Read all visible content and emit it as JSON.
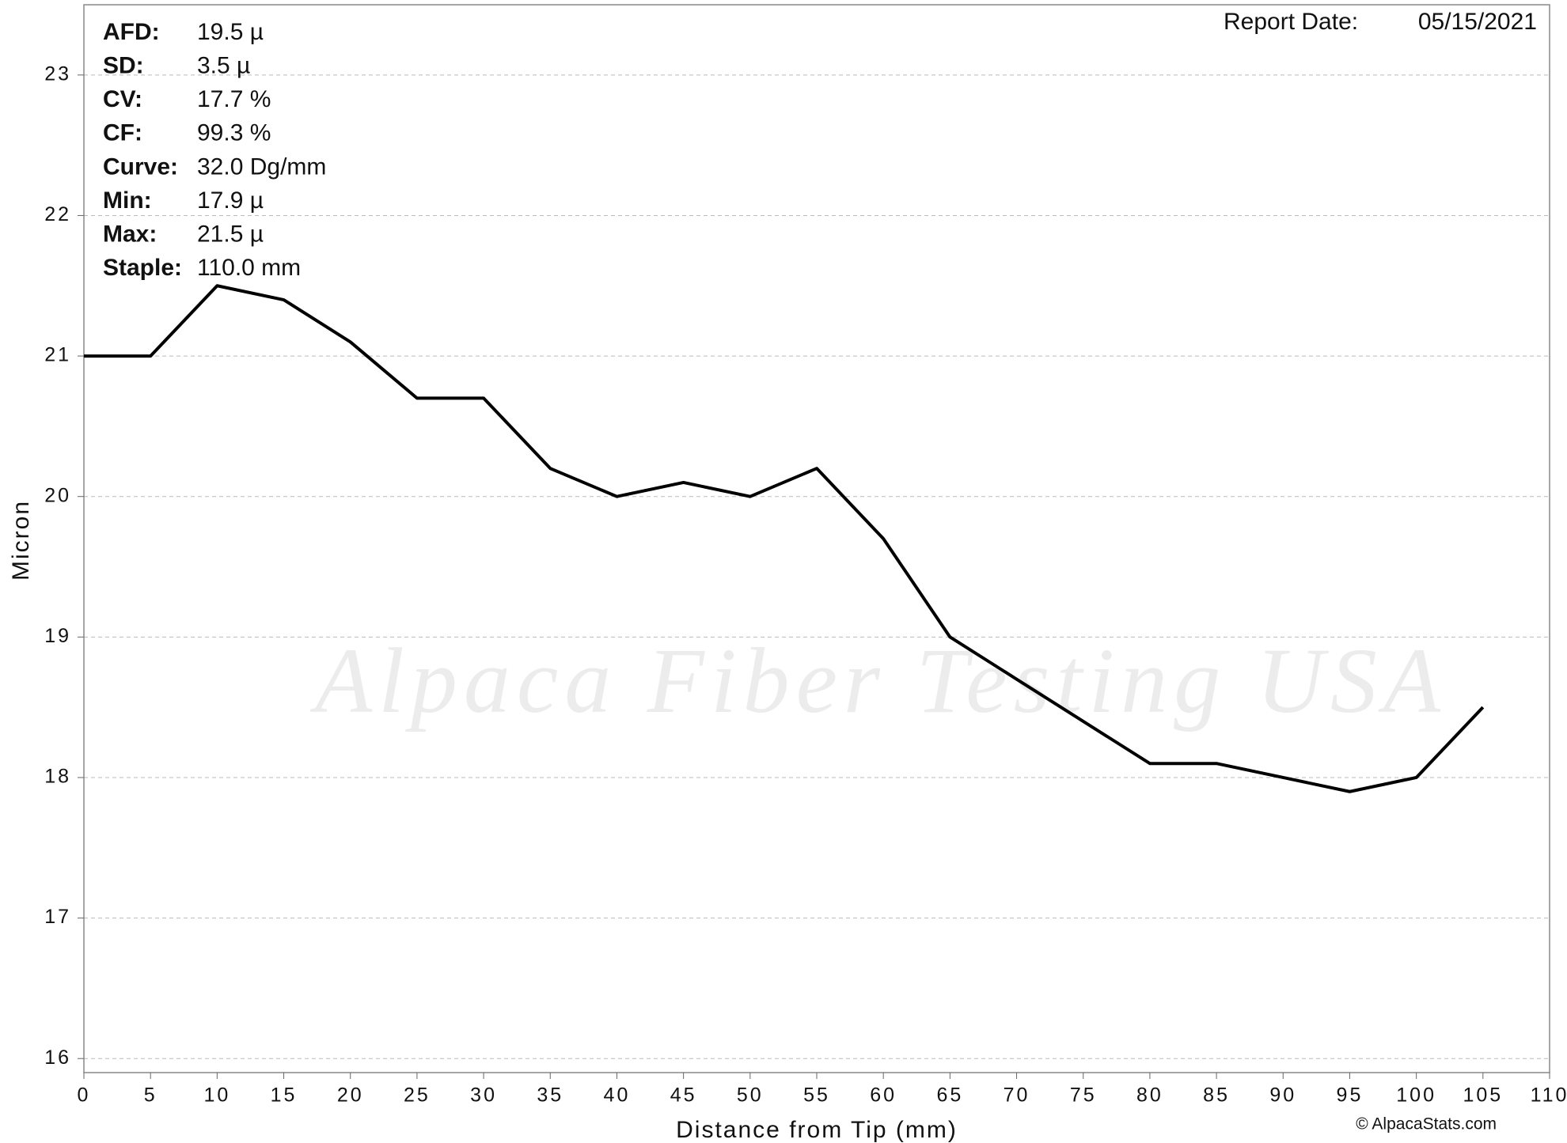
{
  "chart_data": {
    "type": "line",
    "x": [
      0,
      5,
      10,
      15,
      20,
      25,
      30,
      35,
      40,
      45,
      50,
      55,
      60,
      65,
      70,
      75,
      80,
      85,
      90,
      95,
      100,
      105
    ],
    "values": [
      21.0,
      21.0,
      21.5,
      21.4,
      21.1,
      20.7,
      20.7,
      20.2,
      20.0,
      20.1,
      20.0,
      20.2,
      19.7,
      19.0,
      18.7,
      18.4,
      18.1,
      18.1,
      18.0,
      17.9,
      18.0,
      18.5
    ],
    "color": "#000000",
    "xlabel": "Distance from Tip (mm)",
    "ylabel": "Micron",
    "xlim": [
      0,
      110
    ],
    "xticks": [
      0,
      5,
      10,
      15,
      20,
      25,
      30,
      35,
      40,
      45,
      50,
      55,
      60,
      65,
      70,
      75,
      80,
      85,
      90,
      95,
      100,
      105,
      110
    ],
    "ylim": [
      15.9,
      23.5
    ],
    "yticks": [
      16,
      17,
      18,
      19,
      20,
      21,
      22,
      23
    ],
    "grid": true,
    "stats": [
      {
        "label": "AFD:",
        "value": "19.5 µ"
      },
      {
        "label": "SD:",
        "value": "3.5 µ"
      },
      {
        "label": "CV:",
        "value": "17.7 %"
      },
      {
        "label": "CF:",
        "value": "99.3 %"
      },
      {
        "label": "Curve:",
        "value": "32.0 Dg/mm"
      },
      {
        "label": "Min:",
        "value": "17.9 µ"
      },
      {
        "label": "Max:",
        "value": "21.5 µ"
      },
      {
        "label": "Staple:",
        "value": "110.0 mm"
      }
    ],
    "report_date_label": "Report Date:",
    "report_date": "05/15/2021",
    "watermark": "Alpaca Fiber Testing USA",
    "copyright": "© AlpacaStats.com"
  }
}
